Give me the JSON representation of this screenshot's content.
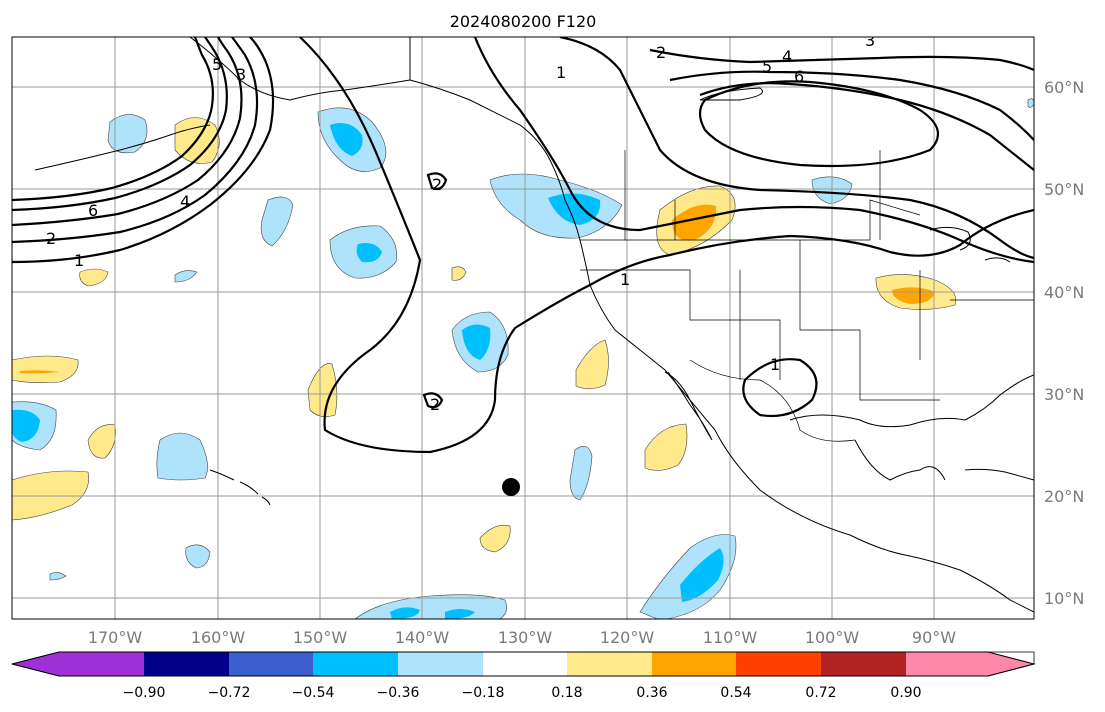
{
  "title": "2024080200 F120",
  "map": {
    "lon_labels": [
      "170°W",
      "160°W",
      "150°W",
      "140°W",
      "130°W",
      "120°W",
      "110°W",
      "100°W",
      "90°W"
    ],
    "lat_labels": [
      "60°N",
      "50°N",
      "40°N",
      "30°N",
      "20°N",
      "10°N"
    ],
    "contour_labels": [
      "1",
      "2",
      "3",
      "4",
      "5",
      "6",
      "1",
      "2",
      "4",
      "6",
      "1",
      "2",
      "2",
      "1",
      "3"
    ],
    "marker": "black-dot"
  },
  "colorbar": {
    "tick_labels": [
      "−0.90",
      "−0.72",
      "−0.54",
      "−0.36",
      "−0.18",
      "0.18",
      "0.36",
      "0.54",
      "0.72",
      "0.90"
    ],
    "colors": [
      "#a030d8",
      "#00008b",
      "#3a5fcd",
      "#00bfff",
      "#aee3fb",
      "#ffffff",
      "#ffe98a",
      "#ffa500",
      "#ff4000",
      "#b22222",
      "#ff88aa"
    ]
  }
}
